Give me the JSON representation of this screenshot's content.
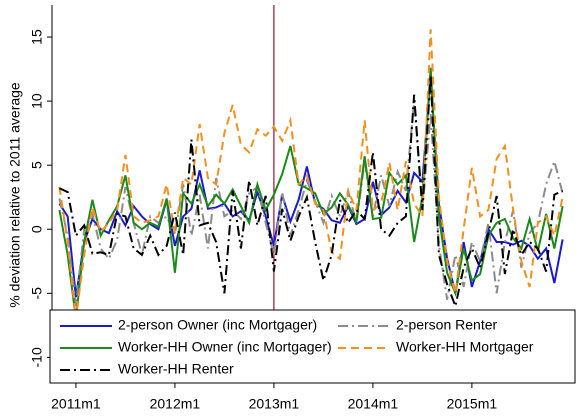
{
  "chart_data": {
    "type": "line",
    "y_label": "% deviation relative to 2011 average",
    "x": [
      610,
      611,
      612,
      613,
      614,
      615,
      616,
      617,
      618,
      619,
      620,
      621,
      622,
      623,
      624,
      625,
      626,
      627,
      628,
      629,
      630,
      631,
      632,
      633,
      634,
      635,
      636,
      637,
      638,
      639,
      640,
      641,
      642,
      643,
      644,
      645,
      646,
      647,
      648,
      649,
      650,
      651,
      652,
      653,
      654,
      655,
      656,
      657,
      658,
      659,
      660,
      661,
      662,
      663,
      664,
      665,
      666,
      667,
      668,
      669,
      670,
      671
    ],
    "xlim": [
      609.1,
      672.5
    ],
    "xticks": [
      {
        "value": 612,
        "label": "2011m1"
      },
      {
        "value": 624,
        "label": "2012m1"
      },
      {
        "value": 636,
        "label": "2013m1"
      },
      {
        "value": 648,
        "label": "2014m1"
      },
      {
        "value": 660,
        "label": "2015m1"
      }
    ],
    "ylim": [
      -12,
      17.5
    ],
    "yticks": [
      -10,
      -5,
      0,
      5,
      10,
      15
    ],
    "grid": false,
    "legend": "bottom",
    "vline": {
      "x": 636,
      "color": "#a01030"
    },
    "series": [
      {
        "name": "2-person Owner (inc Mortgager)",
        "color": "#1a1ad0",
        "dash": "solid",
        "values": [
          2,
          1,
          -5.3,
          -1,
          0.8,
          0,
          -0.3,
          1.4,
          0.3,
          1.8,
          1,
          0.4,
          0,
          2.3,
          -1.3,
          1,
          1.6,
          4.6,
          1.6,
          1.7,
          2,
          1,
          1.4,
          0.7,
          2.9,
          1,
          -1.3,
          2.7,
          0.6,
          2.3,
          4.9,
          2,
          1.6,
          0.7,
          0.5,
          1.8,
          0.4,
          0.8,
          3.7,
          1.1,
          1.7,
          3,
          2.1,
          4.4,
          3.7,
          12,
          2,
          -2.3,
          -5,
          -1,
          -4.5,
          -2.5,
          0,
          -1,
          -1,
          -1.2,
          -0.9,
          -1.3,
          -2.3,
          -1.5,
          -4.2,
          -0.8
        ]
      },
      {
        "name": "2-person Renter",
        "color": "#8c8c8c",
        "dash": "dashdot",
        "values": [
          2.4,
          -0.5,
          -6,
          0,
          1.2,
          -1.5,
          -2.3,
          -0.8,
          3.3,
          0.5,
          -2,
          1,
          0.5,
          1,
          -0.4,
          3.5,
          -0.5,
          2.7,
          -1.5,
          4,
          1,
          1.5,
          0.8,
          2.8,
          3.3,
          0.5,
          -2,
          2.9,
          -0.5,
          1.5,
          3.8,
          2.2,
          0.5,
          2.6,
          1,
          3,
          0.5,
          5.3,
          1,
          4.2,
          1.8,
          4.5,
          3,
          10,
          1.5,
          9,
          -1.2,
          -5.5,
          -2,
          -4.5,
          -1,
          -2.5,
          0.5,
          -5,
          -1,
          1.5,
          -3,
          -0.3,
          0.5,
          3.5,
          5.3,
          2.8
        ]
      },
      {
        "name": "Worker-HH Owner (inc Mortgager)",
        "color": "#1a8a1a",
        "dash": "solid",
        "values": [
          1.5,
          -2,
          -7,
          -1,
          2.3,
          -0.5,
          0.7,
          1.8,
          4.2,
          0.5,
          0,
          0.5,
          0.2,
          2.4,
          -3.4,
          2.8,
          2,
          3.5,
          1.8,
          2.7,
          2,
          3.1,
          1.8,
          0.5,
          3.5,
          1.5,
          2.7,
          4.3,
          6.5,
          3.5,
          3.2,
          2.8,
          1.2,
          1.7,
          2.8,
          1.9,
          0.6,
          5.7,
          0.8,
          0.9,
          4.4,
          3.5,
          4.2,
          -1,
          2.5,
          12.6,
          1,
          -3.4,
          -5,
          -1.5,
          -4,
          -3.5,
          -0.5,
          0.5,
          0.8,
          -0.7,
          -1.5,
          0.8,
          -1.7,
          1.2,
          -1.5,
          1.8
        ]
      },
      {
        "name": "Worker-HH Mortgager",
        "color": "#f5901e",
        "dash": "dash",
        "values": [
          3.3,
          -1,
          -7,
          -2,
          1.7,
          -0.2,
          0.5,
          1.5,
          5.8,
          1,
          0.5,
          0.7,
          1,
          3.5,
          -0.3,
          4,
          3.5,
          8.2,
          4,
          3.5,
          7.5,
          9.7,
          6.6,
          6,
          7.8,
          7.3,
          8,
          6.9,
          8.5,
          3.5,
          4.2,
          2,
          1.5,
          -1.8,
          -2.3,
          3,
          1.5,
          8.5,
          1.5,
          2,
          5.2,
          1.5,
          5.3,
          2,
          1,
          15.6,
          2.5,
          -2.5,
          -5,
          0,
          4.8,
          1,
          1.5,
          5.5,
          6.5,
          1.5,
          -2.5,
          -4.5,
          0.5,
          1,
          -0.5,
          2.5
        ]
      },
      {
        "name": "Worker-HH Renter",
        "color": "#000000",
        "dash": "dashdot",
        "values": [
          3.2,
          2.9,
          -0.5,
          0.3,
          -1.9,
          -1.8,
          -2,
          1.2,
          1,
          -1.5,
          -2,
          -0.5,
          -2,
          -1.3,
          1.3,
          -2,
          7,
          0.3,
          0.5,
          -1,
          -5,
          3,
          -1.5,
          3.8,
          0.3,
          2.6,
          -3.3,
          1.6,
          -0.9,
          1,
          2.5,
          -1,
          -4,
          -2,
          2.3,
          0.5,
          1.5,
          0.8,
          6,
          0,
          -0.5,
          0.5,
          1,
          10.5,
          1.5,
          12,
          -2,
          -4.3,
          -6,
          -3,
          -1.5,
          -3,
          -0.3,
          2.6,
          -3.5,
          0,
          -2,
          -1,
          -1.5,
          -3.3,
          2.7,
          3
        ]
      }
    ]
  }
}
